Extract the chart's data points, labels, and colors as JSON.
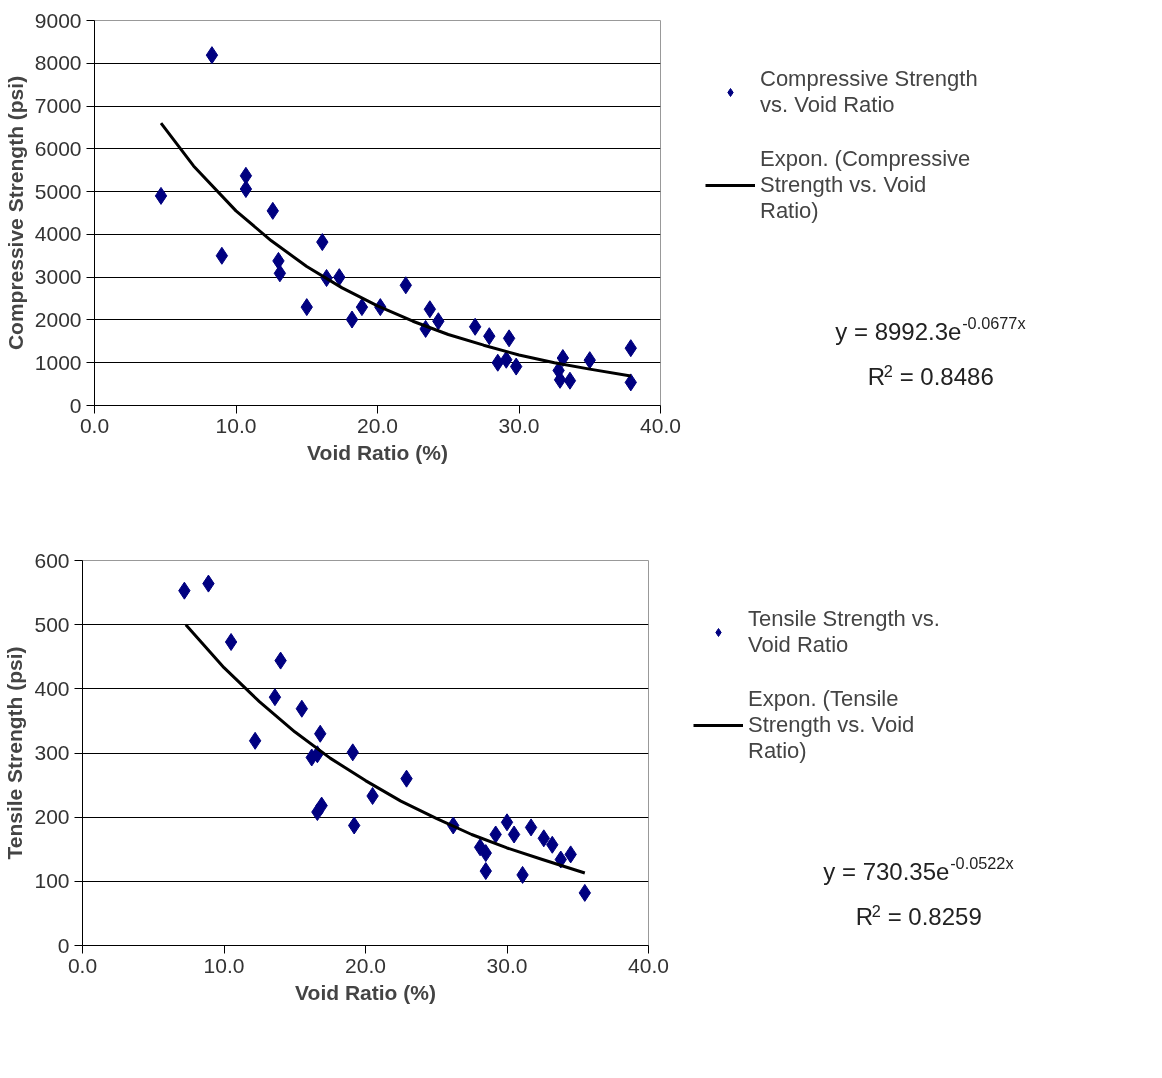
{
  "chart_data": [
    {
      "type": "scatter",
      "xlabel": "Void Ratio (%)",
      "ylabel": "Compressive Strength (psi)",
      "xlim": [
        0,
        40
      ],
      "ylim": [
        0,
        9000
      ],
      "xticks": [
        {
          "value": 0,
          "label": "0.0"
        },
        {
          "value": 10,
          "label": "10.0"
        },
        {
          "value": 20,
          "label": "20.0"
        },
        {
          "value": 30,
          "label": "30.0"
        },
        {
          "value": 40,
          "label": "40.0"
        }
      ],
      "yticks": [
        0,
        1000,
        2000,
        3000,
        4000,
        5000,
        6000,
        7000,
        8000,
        9000
      ],
      "grid": "y",
      "legend": "right",
      "series": [
        {
          "name": "Compressive Strength vs. Void Ratio",
          "marker": "diamond",
          "color": "#000080",
          "x": [
            4.7,
            8.3,
            9.0,
            10.7,
            10.7,
            12.6,
            13.0,
            13.1,
            15.0,
            16.1,
            16.4,
            17.3,
            18.2,
            18.9,
            20.2,
            22.0,
            23.4,
            23.7,
            24.3,
            26.9,
            27.9,
            28.5,
            29.3,
            29.1,
            29.8,
            32.8,
            33.1,
            32.9,
            33.6,
            35.0,
            37.9,
            37.9
          ],
          "values": [
            4900,
            8190,
            3500,
            5370,
            5060,
            4550,
            3380,
            3090,
            2300,
            3820,
            2980,
            3000,
            2010,
            2300,
            2300,
            2810,
            1790,
            2250,
            1970,
            1840,
            1620,
            1000,
            1570,
            1070,
            910,
            820,
            1110,
            600,
            580,
            1060,
            1340,
            540
          ]
        },
        {
          "name": "Expon. (Compressive Strength vs. Void Ratio)",
          "type": "line",
          "line_style": "solid",
          "color": "#000000",
          "x": [
            4.7,
            7,
            10,
            12.5,
            15,
            17.5,
            20,
            22.5,
            25,
            27.5,
            30,
            32.5,
            35,
            37.9
          ],
          "values": [
            6600,
            5600,
            4550,
            3850,
            3250,
            2750,
            2330,
            1970,
            1660,
            1410,
            1180,
            1000,
            850,
            690
          ]
        }
      ],
      "annotations": [
        "y = 8992.3e$^{-0.0677x}$",
        "R$^{2}$ = 0.8486"
      ]
    },
    {
      "type": "scatter",
      "xlabel": "Void Ratio (%)",
      "ylabel": "Tensile Strength (psi)",
      "xlim": [
        0,
        40
      ],
      "ylim": [
        0,
        600
      ],
      "xticks": [
        {
          "value": 0,
          "label": "0.0"
        },
        {
          "value": 10,
          "label": "10.0"
        },
        {
          "value": 20,
          "label": "20.0"
        },
        {
          "value": 30,
          "label": "30.0"
        },
        {
          "value": 40,
          "label": "40.0"
        }
      ],
      "yticks": [
        0,
        100,
        200,
        300,
        400,
        500,
        600
      ],
      "grid": "y",
      "legend": "right",
      "series": [
        {
          "name": "Tensile Strength vs. Void Ratio",
          "marker": "diamond",
          "color": "#000080",
          "x": [
            7.2,
            8.9,
            10.5,
            12.2,
            14.0,
            13.6,
            15.5,
            16.8,
            16.6,
            16.2,
            16.6,
            16.9,
            19.1,
            19.2,
            20.5,
            22.9,
            26.2,
            28.1,
            28.5,
            28.5,
            29.2,
            30.0,
            30.5,
            31.1,
            31.7,
            32.6,
            33.2,
            33.8,
            34.5,
            35.5
          ],
          "values": [
            553,
            564,
            473,
            319,
            444,
            387,
            369,
            330,
            298,
            293,
            208,
            218,
            301,
            187,
            233,
            260,
            187,
            153,
            144,
            116,
            173,
            192,
            173,
            110,
            184,
            167,
            157,
            134,
            142,
            82
          ]
        },
        {
          "name": "Expon. (Tensile Strength vs. Void Ratio)",
          "type": "line",
          "line_style": "solid",
          "color": "#000000",
          "x": [
            7.3,
            10,
            12.5,
            15,
            17.5,
            20,
            22.5,
            25,
            27.5,
            30,
            32.5,
            35.5
          ],
          "values": [
            500,
            433,
            380,
            333,
            292,
            257,
            225,
            198,
            173,
            152,
            134,
            113
          ]
        }
      ],
      "annotations": [
        "y = 730.35e$^{-0.0522x}$",
        "R$^{2}$ = 0.8259"
      ]
    }
  ]
}
